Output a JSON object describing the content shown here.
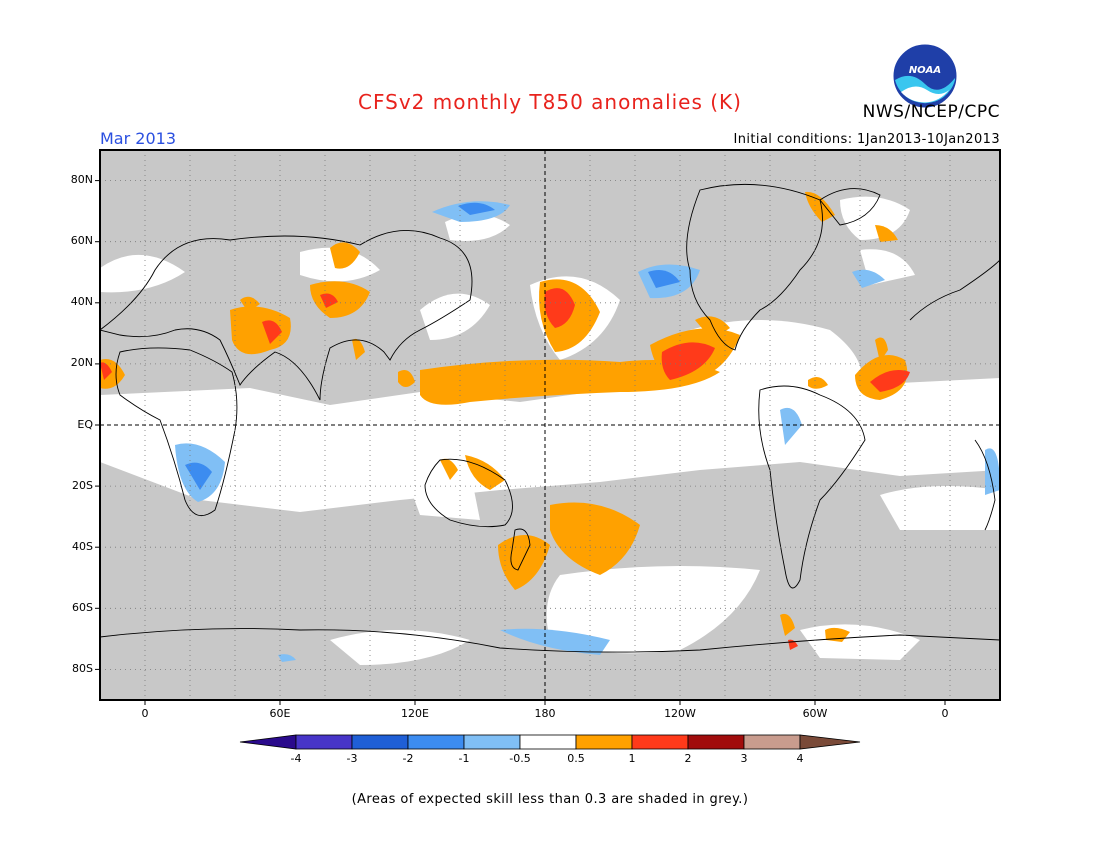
{
  "header": {
    "title": "CFSv2 monthly T850 anomalies (K)",
    "agency": "NWS/NCEP/CPC",
    "logo_text": "NOAA",
    "month": "Mar 2013",
    "initial_conditions": "Initial conditions: 1Jan2013-10Jan2013"
  },
  "map": {
    "projection": "equirectangular",
    "lon_range_deg_east": [
      -20,
      380
    ],
    "lat_range_deg": [
      -90,
      90
    ],
    "grid": "dotted, every 20 degrees",
    "dashed_reference_lines": [
      "EQ",
      "180"
    ],
    "lat_labels": [
      "80N",
      "60N",
      "40N",
      "20N",
      "EQ",
      "20S",
      "40S",
      "60S",
      "80S"
    ],
    "lon_labels": [
      "0",
      "60E",
      "120E",
      "180",
      "120W",
      "60W",
      "0"
    ]
  },
  "legend": {
    "labels": [
      "-4",
      "-3",
      "-2",
      "-1",
      "-0.5",
      "0.5",
      "1",
      "2",
      "3",
      "4"
    ],
    "colors": [
      "#2a0a8c",
      "#4735c8",
      "#1f5fd6",
      "#3c8cf0",
      "#80bff5",
      "#ffffff",
      "#ffa100",
      "#ff3a1a",
      "#a10c0c",
      "#c99c8e",
      "#7a4a38"
    ],
    "skill_grey": "#c8c8c8"
  },
  "footnote": "(Areas of expected skill less than 0.3 are shaded in grey.)"
}
